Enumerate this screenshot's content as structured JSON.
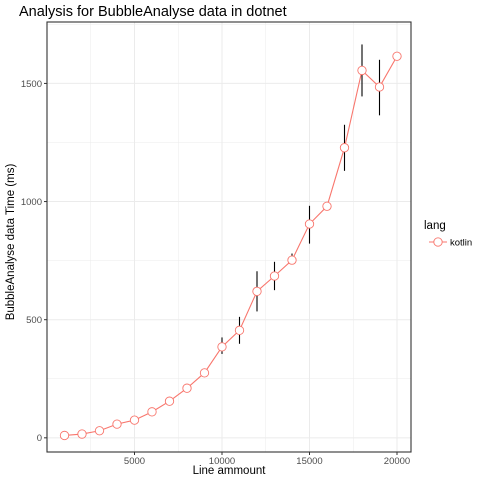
{
  "chart_data": {
    "type": "line",
    "title": "Analysis for BubbleAnalyse data in dotnet",
    "xlabel": "Line ammount",
    "ylabel": "BubbleAnalyse data Time (ms)",
    "xlim": [
      0,
      20800
    ],
    "ylim": [
      -60,
      1760
    ],
    "xticks": [
      5000,
      10000,
      15000,
      20000
    ],
    "xtick_labels": [
      "5000",
      "10000",
      "15000",
      "20000"
    ],
    "yticks": [
      0,
      500,
      1000,
      1500
    ],
    "ytick_labels": [
      "0",
      "500",
      "1000",
      "1500"
    ],
    "grid": true,
    "legend": {
      "title": "lang",
      "position": "right"
    },
    "series": [
      {
        "name": "kotlin",
        "color": "#F8766D",
        "x": [
          1000,
          2000,
          3000,
          4000,
          5000,
          6000,
          7000,
          8000,
          9000,
          10000,
          11000,
          12000,
          13000,
          14000,
          15000,
          16000,
          17000,
          18000,
          19000,
          20000
        ],
        "y": [
          10,
          16,
          30,
          58,
          75,
          110,
          155,
          210,
          275,
          385,
          455,
          620,
          685,
          752,
          905,
          980,
          1228,
          1555,
          1485,
          1615
        ],
        "err_low": [
          10,
          16,
          30,
          58,
          75,
          110,
          155,
          210,
          275,
          355,
          398,
          535,
          625,
          735,
          822,
          980,
          1130,
          1445,
          1365,
          1615
        ],
        "err_high": [
          10,
          16,
          30,
          58,
          75,
          110,
          155,
          210,
          275,
          425,
          512,
          705,
          745,
          780,
          982,
          980,
          1325,
          1665,
          1600,
          1615
        ]
      }
    ]
  }
}
